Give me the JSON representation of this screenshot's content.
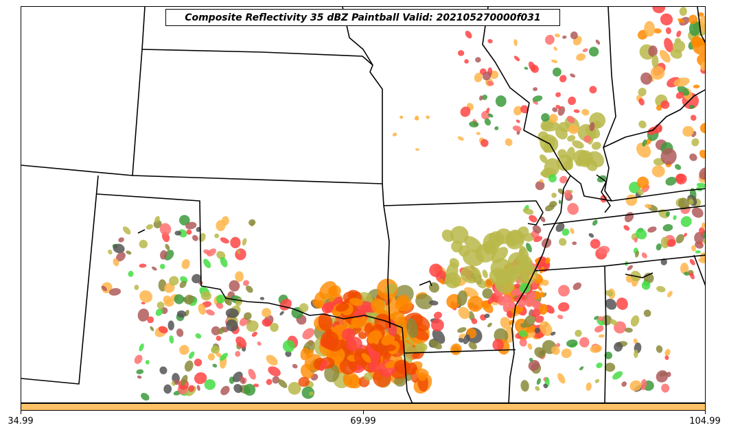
{
  "title": "Composite Reflectivity 35 dBZ Paintball Valid: 202105270000f031",
  "colorbar": {
    "color": "#ffc266",
    "ticks": [
      "34.99",
      "69.99",
      "104.99"
    ]
  },
  "colors": {
    "dark_red": "#b05a5a",
    "red": "#ff4444",
    "light_red": "#ff7070",
    "orange": "#ff8a00",
    "red_orange": "#f04a00",
    "light_orange": "#ffb54a",
    "olive": "#b8b84a",
    "dark_olive": "#8a8a3a",
    "green": "#3c9a3c",
    "bright_green": "#44dd44",
    "dark_gray": "#555555",
    "brown": "#a0522d"
  }
}
